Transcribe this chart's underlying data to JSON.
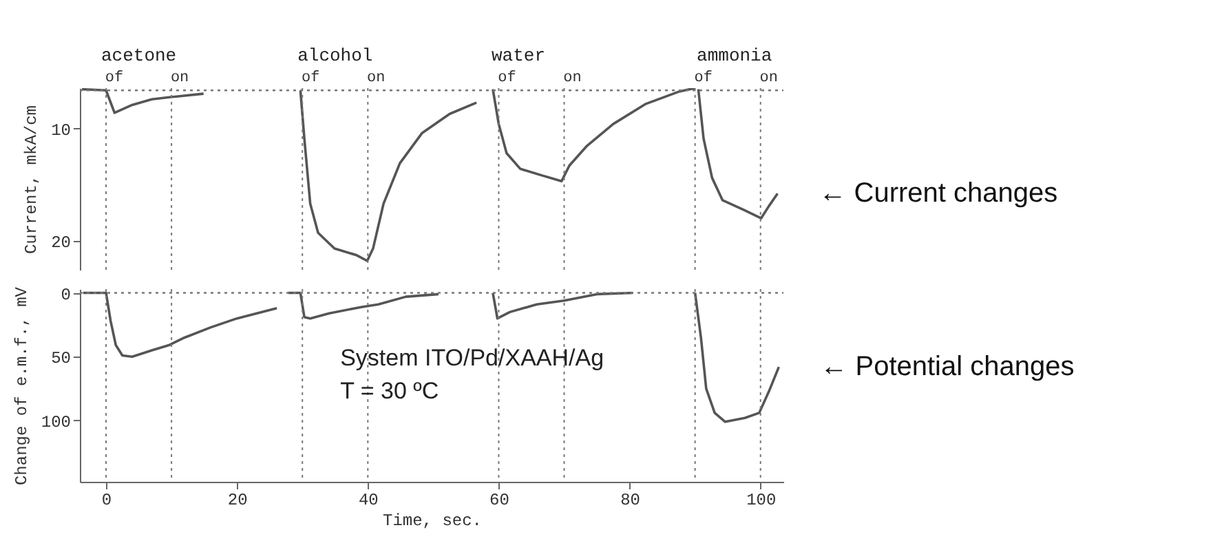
{
  "chart_data": [
    {
      "type": "line",
      "ylabel": "Current, mkA/cm",
      "xlim": [
        -4,
        103.5
      ],
      "ylim": [
        22.6,
        6.4
      ],
      "xticks": [
        0,
        20,
        40,
        60,
        80,
        100
      ],
      "yticks": [
        10,
        20
      ],
      "tick_labels": "y",
      "series": [
        {
          "color": "#555555",
          "x": [
            -3.7,
            0,
            1.3,
            4,
            7,
            9.9,
            14.9
          ],
          "values": [
            6.5,
            6.6,
            8.6,
            7.9,
            7.4,
            7.2,
            6.9
          ]
        },
        {
          "color": "#555555",
          "x": [
            29.7,
            30.3,
            31.2,
            32.4,
            34.9,
            38.3,
            39.9,
            40.8,
            42.4,
            44.9,
            48.3,
            52.5,
            56.6
          ],
          "values": [
            6.6,
            10.9,
            16.7,
            19.3,
            20.7,
            21.3,
            21.8,
            20.7,
            16.7,
            13.1,
            10.4,
            8.7,
            7.7
          ]
        },
        {
          "color": "#555555",
          "x": [
            59.1,
            60,
            61.2,
            63.3,
            66.7,
            69.6,
            70.8,
            73.4,
            77.5,
            82.5,
            87.6,
            90
          ],
          "values": [
            6.5,
            9.6,
            12.2,
            13.6,
            14.2,
            14.7,
            13.3,
            11.6,
            9.6,
            7.8,
            6.7,
            6.4
          ]
        },
        {
          "color": "#555555",
          "x": [
            90.5,
            91.3,
            92.6,
            94.2,
            97.6,
            100.1,
            101.3,
            102.6
          ],
          "values": [
            6.5,
            10.9,
            14.4,
            16.4,
            17.3,
            18,
            16.9,
            15.8
          ]
        }
      ],
      "ref_lines": [
        {
          "axis": "y",
          "value": 6.6,
          "line_style": "dotted"
        },
        {
          "axis": "x",
          "value": 0,
          "label": "of",
          "line_style": "dotted"
        },
        {
          "axis": "x",
          "value": 10,
          "label": "on",
          "line_style": "dotted"
        },
        {
          "axis": "x",
          "value": 30,
          "label": "of",
          "line_style": "dotted"
        },
        {
          "axis": "x",
          "value": 40,
          "label": "on",
          "line_style": "dotted"
        },
        {
          "axis": "x",
          "value": 60,
          "label": "of",
          "line_style": "dotted"
        },
        {
          "axis": "x",
          "value": 70,
          "label": "on",
          "line_style": "dotted"
        },
        {
          "axis": "x",
          "value": 90,
          "label": "of",
          "line_style": "dotted"
        },
        {
          "axis": "x",
          "value": 100,
          "label": "on",
          "line_style": "dotted"
        }
      ],
      "annotations": [
        {
          "text": "acetone",
          "x": 5,
          "y": 6.4
        },
        {
          "text": "alcohol",
          "x": 35,
          "y": 6.4
        },
        {
          "text": "water",
          "x": 63,
          "y": 6.4
        },
        {
          "text": "ammonia",
          "x": 96,
          "y": 6.4
        },
        {
          "text": "← Current changes",
          "x": 102.6,
          "y": 15.8
        }
      ]
    },
    {
      "type": "line",
      "xlabel": "Time, sec.",
      "ylabel": "Change of e.m.f., mV",
      "xlim": [
        -4,
        103.5
      ],
      "ylim": [
        148,
        -3
      ],
      "xticks": [
        0,
        20,
        40,
        60,
        80,
        100
      ],
      "yticks": [
        0,
        50,
        100
      ],
      "series": [
        {
          "color": "#555555",
          "x": [
            -3.5,
            0,
            0.7,
            1.5,
            2.5,
            4,
            7,
            9.6,
            12,
            16,
            20,
            26.1
          ],
          "values": [
            0,
            0,
            22,
            41,
            49,
            50,
            45,
            41,
            35,
            27,
            20,
            12
          ]
        },
        {
          "color": "#555555",
          "x": [
            27.8,
            29.7,
            30.3,
            31.2,
            34.1,
            39.1,
            41.6,
            45.8,
            50.8
          ],
          "values": [
            0,
            0,
            19,
            20,
            16,
            11,
            9,
            3,
            1
          ]
        },
        {
          "color": "#555555",
          "x": [
            59.1,
            59.8,
            61.7,
            65.8,
            70,
            75,
            80.5
          ],
          "values": [
            0,
            20,
            15,
            9,
            6,
            1,
            0
          ]
        },
        {
          "color": "#555555",
          "x": [
            90,
            90.9,
            91.7,
            93,
            94.6,
            97.6,
            99.8,
            101.3,
            102.8
          ],
          "values": [
            0,
            35,
            75,
            94,
            101,
            98,
            94,
            77,
            58
          ]
        }
      ],
      "ref_lines": [
        {
          "axis": "y",
          "value": 0,
          "line_style": "dotted"
        },
        {
          "axis": "x",
          "value": 0,
          "line_style": "dotted"
        },
        {
          "axis": "x",
          "value": 10,
          "line_style": "dotted"
        },
        {
          "axis": "x",
          "value": 30,
          "line_style": "dotted"
        },
        {
          "axis": "x",
          "value": 40,
          "line_style": "dotted"
        },
        {
          "axis": "x",
          "value": 60,
          "line_style": "dotted"
        },
        {
          "axis": "x",
          "value": 70,
          "line_style": "dotted"
        },
        {
          "axis": "x",
          "value": 90,
          "line_style": "dotted"
        },
        {
          "axis": "x",
          "value": 100,
          "line_style": "dotted"
        }
      ],
      "annotations": [
        "System ITO/Pd/XAAH/Ag",
        "T = 30 ºC",
        {
          "text": "← Potential changes",
          "x": 102.8,
          "y": 58
        }
      ]
    }
  ]
}
